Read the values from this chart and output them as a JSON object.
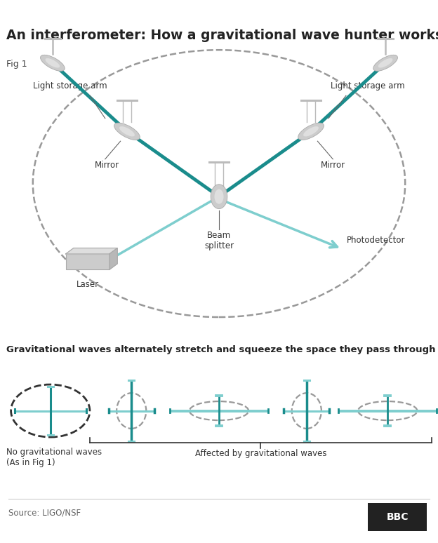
{
  "title": "An interferometer: How a gravitational wave hunter works",
  "title_fontsize": 13.5,
  "title_color": "#222222",
  "background_color": "#ffffff",
  "fig1_label": "Fig 1",
  "teal_dark": "#1a8c8c",
  "teal_light": "#7ecece",
  "gray_component": "#cccccc",
  "dashed_circle_color": "#999999",
  "dashed_circle_color_black": "#333333",
  "labels": {
    "light_storage_left": "Light storage arm",
    "light_storage_right": "Light storage arm",
    "mirror_left": "Mirror",
    "mirror_right": "Mirror",
    "beam_splitter": "Beam\nsplitter",
    "laser": "Laser",
    "photodetector": "Photodetector"
  },
  "section2_title": "Gravitational waves alternately stretch and squeeze the space they pass through",
  "section2_label1": "No gravitational waves\n(As in Fig 1)",
  "section2_label2": "Affected by gravitational waves",
  "source_text": "Source: LIGO/NSF",
  "bbc_text": "BBC"
}
